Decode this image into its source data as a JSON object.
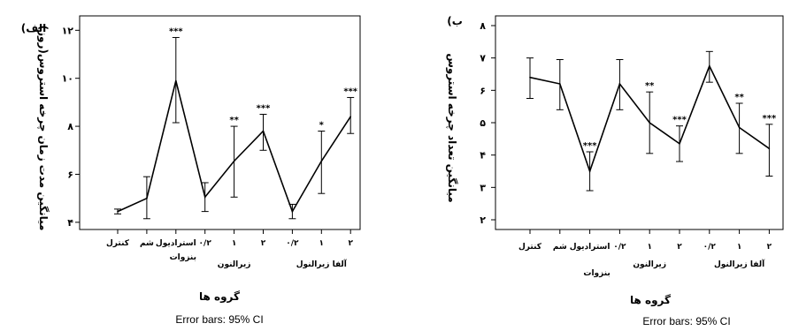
{
  "chart_data": [
    {
      "type": "line",
      "panel_label": "الف)",
      "ylabel": "میانگین مدت زمان چرخه استروس(روز)",
      "xlabel": "گروه ها",
      "note": "Error bars: 95% CI",
      "ylim": [
        3.7,
        12.6
      ],
      "yticks": [
        {
          "value": 4,
          "label": "۴"
        },
        {
          "value": 6,
          "label": "۶"
        },
        {
          "value": 8,
          "label": "۸"
        },
        {
          "value": 10,
          "label": "۱۰"
        },
        {
          "value": 12,
          "label": "۱۲"
        }
      ],
      "categories": [
        "کنترل",
        "شم",
        "استرادیول بنزوات",
        "۰/۲",
        "۱",
        "۲",
        "۰/۲",
        "۱",
        "۲"
      ],
      "groups": [
        {
          "label": "زیرالنون",
          "from": 3,
          "to": 5
        },
        {
          "label": "آلفا زیرالنول",
          "from": 6,
          "to": 8
        }
      ],
      "values": [
        4.45,
        5.0,
        9.9,
        5.05,
        6.55,
        7.8,
        4.45,
        6.55,
        8.4
      ],
      "ci_lower": [
        4.35,
        4.15,
        8.15,
        4.45,
        5.05,
        7.0,
        4.15,
        5.2,
        7.7
      ],
      "ci_upper": [
        4.55,
        5.9,
        11.7,
        5.65,
        8.0,
        8.5,
        4.75,
        7.8,
        9.2
      ],
      "significance": [
        "",
        "",
        "***",
        "",
        "**",
        "***",
        "",
        "*",
        "***"
      ]
    },
    {
      "type": "line",
      "panel_label": "ب)",
      "ylabel": "میانگین تعداد چرخه استروس",
      "xlabel": "گروه ها",
      "note": "Error bars: 95% CI",
      "ylim": [
        1.7,
        8.3
      ],
      "yticks": [
        {
          "value": 2,
          "label": "۲"
        },
        {
          "value": 3,
          "label": "۳"
        },
        {
          "value": 4,
          "label": "۴"
        },
        {
          "value": 5,
          "label": "۵"
        },
        {
          "value": 6,
          "label": "۶"
        },
        {
          "value": 7,
          "label": "۷"
        },
        {
          "value": 8,
          "label": "۸"
        }
      ],
      "categories": [
        "کنترل",
        "شم",
        "استرادیول بنزوات",
        "۰/۲",
        "۱",
        "۲",
        "۰/۲",
        "۱",
        "۲"
      ],
      "groups": [
        {
          "label": "زیرالنون",
          "from": 3,
          "to": 5
        },
        {
          "label": "آلفا زیرالنول",
          "from": 6,
          "to": 8
        }
      ],
      "values": [
        6.4,
        6.2,
        3.5,
        6.2,
        5.0,
        4.35,
        6.75,
        4.85,
        4.2
      ],
      "ci_lower": [
        5.75,
        5.4,
        2.9,
        5.4,
        4.05,
        3.8,
        6.25,
        4.05,
        3.35
      ],
      "ci_upper": [
        7.0,
        6.95,
        4.1,
        6.95,
        5.95,
        4.9,
        7.2,
        5.6,
        4.95
      ],
      "significance": [
        "",
        "",
        "***",
        "",
        "**",
        "***",
        "",
        "**",
        "***"
      ]
    }
  ]
}
